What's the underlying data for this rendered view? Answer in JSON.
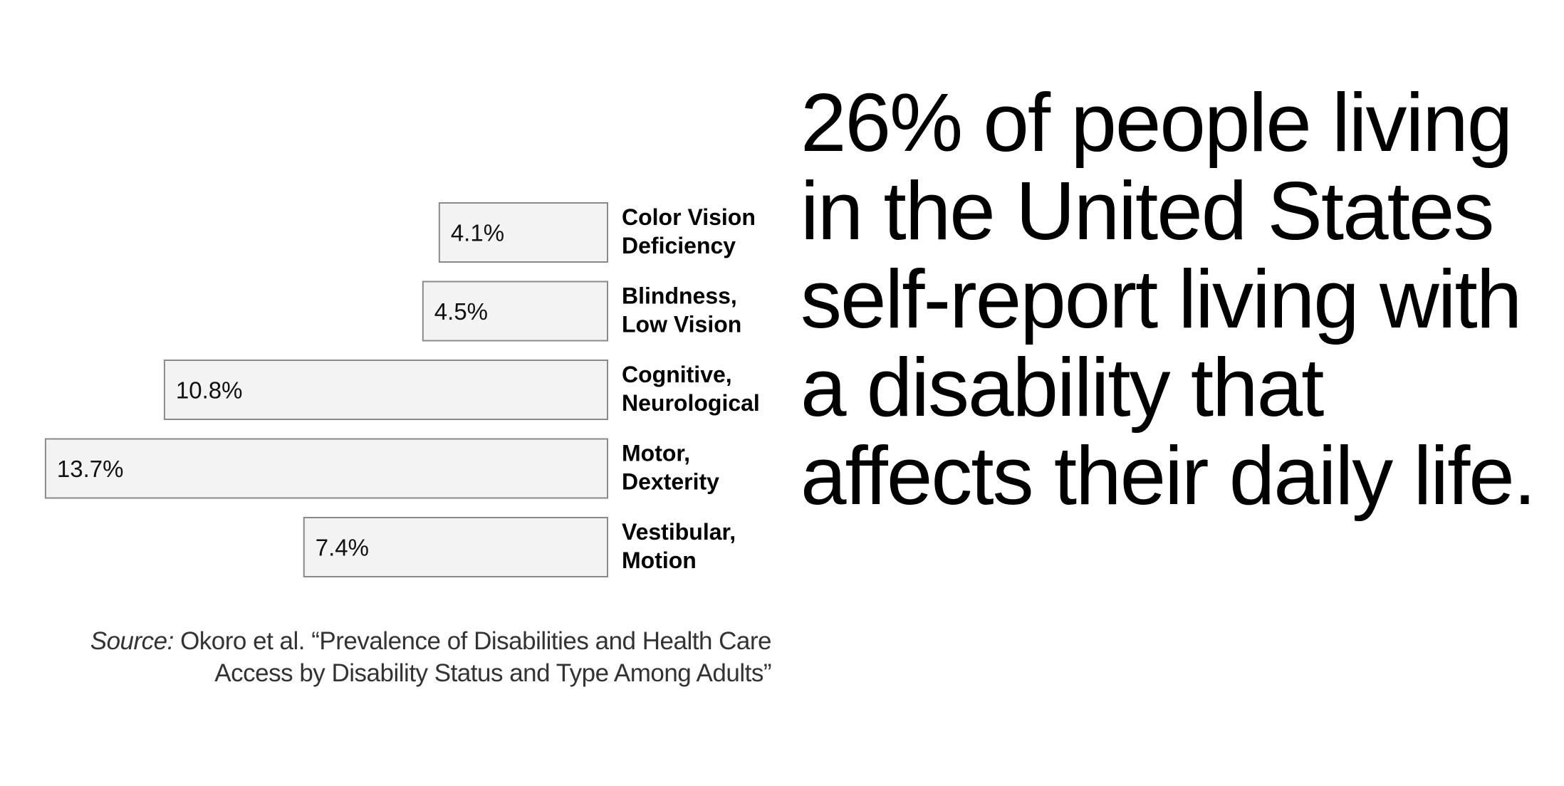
{
  "chart_data": {
    "type": "bar",
    "orientation": "horizontal",
    "categories": [
      [
        "Color Vision",
        "Deficiency"
      ],
      [
        "Blindness,",
        "Low Vision"
      ],
      [
        "Cognitive,",
        "Neurological"
      ],
      [
        "Motor,",
        "Dexterity"
      ],
      [
        "Vestibular,",
        "Motion"
      ]
    ],
    "values": [
      4.1,
      4.5,
      10.8,
      13.7,
      7.4
    ],
    "value_labels": [
      "4.1%",
      "4.5%",
      "10.8%",
      "13.7%",
      "7.4%"
    ],
    "unit": "%",
    "bar_direction": "right-to-left",
    "grid": false,
    "legend": "none"
  },
  "source": {
    "prefix": "Source:",
    "text": " Okoro et al. “Prevalence of Disabilities and Health Care Access by Disability Status and Type Among Adults”"
  },
  "headline": "26% of people living in the United States self-report living with a disability that affects their daily life.",
  "colors": {
    "bar_fill": "#f3f3f3",
    "bar_stroke": "#8a8a8a",
    "text": "#000000",
    "source_text": "#333333"
  }
}
